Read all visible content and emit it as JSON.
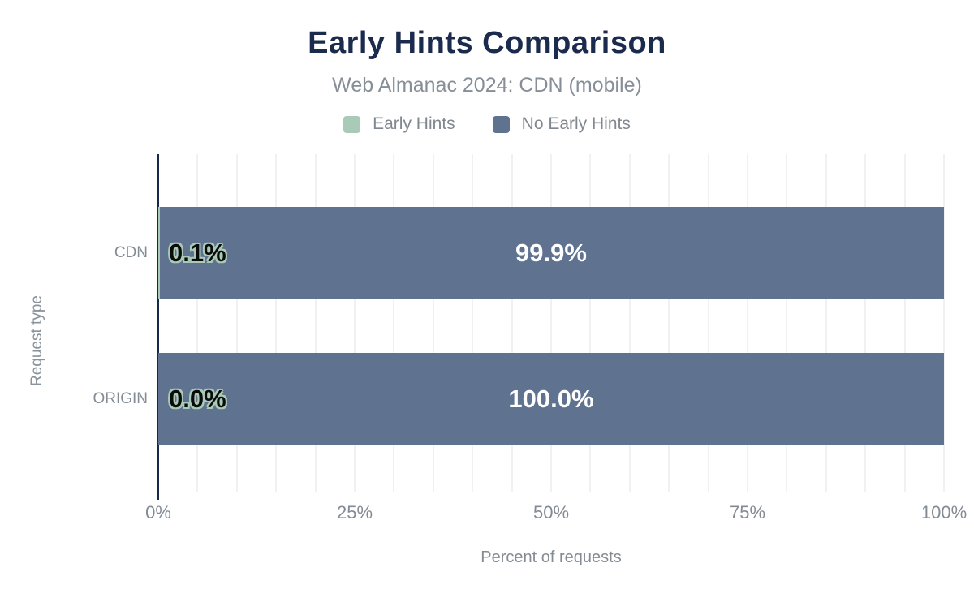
{
  "chart_data": {
    "type": "bar",
    "orientation": "horizontal",
    "stacked": true,
    "title": "Early Hints Comparison",
    "subtitle": "Web Almanac 2024: CDN (mobile)",
    "xlabel": "Percent of requests",
    "ylabel": "Request type",
    "xlim": [
      0,
      100
    ],
    "categories": [
      "CDN",
      "ORIGIN"
    ],
    "series": [
      {
        "name": "Early Hints",
        "values": [
          0.1,
          0.0
        ],
        "color": "#a9cab7"
      },
      {
        "name": "No Early Hints",
        "values": [
          99.9,
          100.0
        ],
        "color": "#5f7390"
      }
    ],
    "value_labels": [
      {
        "early": "0.1%",
        "no_early": "99.9%"
      },
      {
        "early": "0.0%",
        "no_early": "100.0%"
      }
    ],
    "xticks": [
      {
        "pct": 0,
        "label": "0%"
      },
      {
        "pct": 25,
        "label": "25%"
      },
      {
        "pct": 50,
        "label": "50%"
      },
      {
        "pct": 75,
        "label": "75%"
      },
      {
        "pct": 100,
        "label": "100%"
      }
    ],
    "grid": {
      "minor_step_pct": 5,
      "color": "#f1f1f4"
    },
    "legend_position": "top"
  },
  "colors": {
    "title": "#1b2b4d",
    "subtitle": "#868e97",
    "axis_line": "#16294b",
    "tick_label": "#828b94",
    "category_label": "#838c95",
    "bar_label_on_dark": "#ffffff",
    "bar_label_on_light": "#0b0b0b",
    "label_halo": "#a9cab7"
  }
}
